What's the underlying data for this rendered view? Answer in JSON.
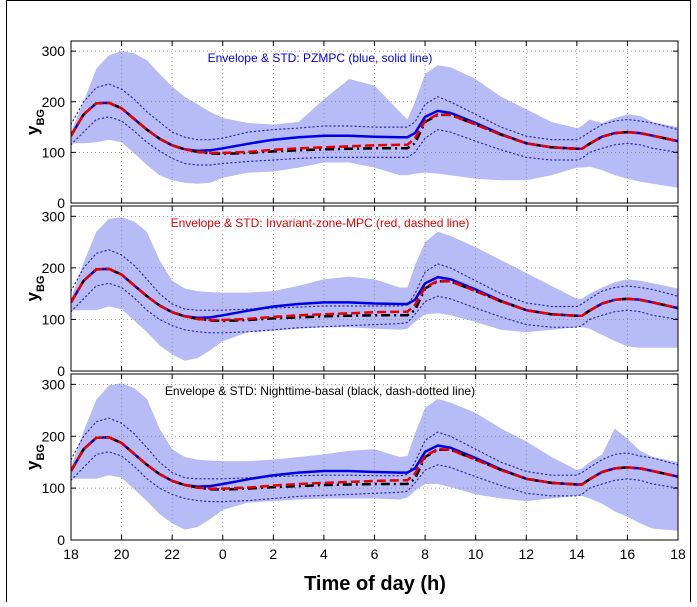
{
  "colors": {
    "envelope": "#b8bcf6",
    "pzmpc": "#0000e6",
    "izmpc": "#e60000",
    "nighttime": "#000000",
    "std": "#2a2aa8"
  },
  "chart_data": [
    {
      "type": "line",
      "annotation": "Envelope & STD: PZMPC (blue, solid line)",
      "annotation_color": "#0000e6",
      "ylabel": "y",
      "ylabel_sub": "BG",
      "xlabel": "",
      "ylim": [
        0,
        320
      ],
      "yticks": [
        0,
        100,
        200,
        300
      ],
      "xlim": [
        0,
        24
      ],
      "xticks": [
        0,
        2,
        4,
        6,
        8,
        10,
        12,
        14,
        16,
        18,
        20,
        22,
        24
      ],
      "xtick_labels": [
        "18",
        "20",
        "22",
        "0",
        "2",
        "4",
        "6",
        "8",
        "10",
        "12",
        "14",
        "16",
        "18"
      ],
      "grid": true,
      "x": [
        0,
        0.5,
        1,
        1.5,
        2,
        2.5,
        3,
        3.5,
        4,
        4.5,
        5,
        5.5,
        6,
        7,
        8,
        9,
        10,
        11,
        12,
        13,
        13.3,
        13.6,
        14,
        14.5,
        15,
        16,
        17,
        18,
        19,
        20,
        20.2,
        20.5,
        21,
        21.5,
        22,
        22.5,
        23,
        24
      ],
      "envelope_upper": [
        140,
        200,
        265,
        292,
        300,
        296,
        282,
        255,
        230,
        210,
        195,
        180,
        168,
        158,
        155,
        160,
        205,
        245,
        232,
        180,
        165,
        200,
        255,
        272,
        268,
        245,
        210,
        185,
        160,
        148,
        152,
        165,
        158,
        168,
        175,
        172,
        160,
        150
      ],
      "envelope_lower": [
        118,
        118,
        120,
        125,
        120,
        98,
        75,
        55,
        45,
        40,
        38,
        40,
        50,
        60,
        62,
        70,
        80,
        80,
        70,
        55,
        55,
        58,
        60,
        58,
        55,
        48,
        45,
        45,
        55,
        70,
        70,
        72,
        65,
        55,
        48,
        42,
        38,
        30
      ],
      "std_upper": [
        155,
        200,
        228,
        235,
        225,
        205,
        180,
        160,
        140,
        130,
        125,
        125,
        128,
        140,
        145,
        148,
        152,
        152,
        150,
        150,
        150,
        160,
        195,
        210,
        200,
        175,
        150,
        132,
        125,
        125,
        130,
        140,
        155,
        162,
        165,
        162,
        158,
        145
      ],
      "std_lower": [
        115,
        140,
        165,
        170,
        162,
        142,
        120,
        103,
        88,
        78,
        75,
        75,
        78,
        82,
        85,
        88,
        90,
        90,
        90,
        90,
        90,
        100,
        128,
        145,
        140,
        122,
        105,
        90,
        85,
        85,
        88,
        100,
        108,
        115,
        118,
        115,
        108,
        100
      ],
      "series": [
        {
          "name": "PZMPC",
          "style": "solid",
          "values": [
            133,
            175,
            197,
            198,
            187,
            166,
            145,
            127,
            114,
            106,
            103,
            104,
            108,
            117,
            125,
            130,
            133,
            133,
            131,
            130,
            130,
            138,
            170,
            182,
            178,
            158,
            136,
            118,
            110,
            107,
            107,
            117,
            131,
            138,
            140,
            138,
            133,
            122
          ]
        },
        {
          "name": "Invariant-zone-MPC",
          "style": "dashed",
          "values": [
            133,
            175,
            197,
            198,
            187,
            166,
            145,
            127,
            114,
            106,
            101,
            99,
            99,
            101,
            105,
            108,
            110,
            112,
            114,
            115,
            115,
            128,
            162,
            175,
            174,
            155,
            135,
            118,
            110,
            107,
            107,
            117,
            131,
            138,
            140,
            138,
            133,
            122
          ]
        },
        {
          "name": "Nighttime-basal",
          "style": "dashdot",
          "values": [
            133,
            175,
            197,
            198,
            187,
            166,
            145,
            127,
            114,
            106,
            101,
            98,
            97,
            99,
            102,
            104,
            106,
            107,
            108,
            108,
            108,
            118,
            160,
            174,
            174,
            155,
            135,
            118,
            110,
            107,
            107,
            117,
            131,
            138,
            140,
            138,
            133,
            122
          ]
        }
      ]
    },
    {
      "type": "line",
      "annotation": "Envelope & STD: Invariant-zone-MPC (red, dashed line)",
      "annotation_color": "#e60000",
      "ylabel": "y",
      "ylabel_sub": "BG",
      "xlabel": "",
      "ylim": [
        0,
        320
      ],
      "yticks": [
        0,
        100,
        200,
        300
      ],
      "xlim": [
        0,
        24
      ],
      "xticks": [
        0,
        2,
        4,
        6,
        8,
        10,
        12,
        14,
        16,
        18,
        20,
        22,
        24
      ],
      "xtick_labels": [
        "18",
        "20",
        "22",
        "0",
        "2",
        "4",
        "6",
        "8",
        "10",
        "12",
        "14",
        "16",
        "18"
      ],
      "grid": true,
      "x": [
        0,
        0.5,
        1,
        1.5,
        2,
        2.5,
        3,
        3.5,
        4,
        4.5,
        5,
        5.5,
        6,
        7,
        8,
        9,
        10,
        11,
        12,
        13,
        13.3,
        13.6,
        14,
        14.5,
        15,
        16,
        17,
        18,
        19,
        20,
        20.2,
        20.5,
        21,
        21.5,
        22,
        22.5,
        23,
        24
      ],
      "envelope_upper": [
        140,
        210,
        270,
        295,
        298,
        290,
        270,
        215,
        175,
        160,
        155,
        153,
        152,
        152,
        155,
        165,
        178,
        183,
        178,
        162,
        162,
        205,
        250,
        270,
        262,
        240,
        215,
        190,
        165,
        140,
        140,
        150,
        162,
        172,
        178,
        175,
        170,
        160
      ],
      "envelope_lower": [
        118,
        118,
        118,
        125,
        120,
        98,
        75,
        50,
        32,
        20,
        25,
        40,
        58,
        75,
        78,
        82,
        85,
        85,
        82,
        80,
        82,
        95,
        110,
        112,
        108,
        95,
        80,
        75,
        80,
        85,
        85,
        82,
        70,
        58,
        48,
        45,
        45,
        45
      ],
      "std_upper": [
        155,
        200,
        228,
        235,
        225,
        205,
        178,
        150,
        130,
        120,
        118,
        118,
        118,
        120,
        122,
        124,
        126,
        126,
        126,
        126,
        128,
        150,
        192,
        208,
        200,
        175,
        150,
        132,
        125,
        125,
        130,
        140,
        155,
        162,
        165,
        162,
        158,
        145
      ],
      "std_lower": [
        115,
        140,
        165,
        170,
        162,
        142,
        118,
        100,
        88,
        80,
        76,
        74,
        74,
        76,
        80,
        84,
        86,
        88,
        90,
        92,
        94,
        110,
        135,
        145,
        140,
        122,
        105,
        90,
        85,
        85,
        88,
        100,
        108,
        115,
        118,
        115,
        108,
        100
      ],
      "series": [
        {
          "name": "PZMPC",
          "style": "solid",
          "values": [
            133,
            175,
            197,
            198,
            187,
            166,
            145,
            127,
            114,
            106,
            103,
            104,
            108,
            117,
            125,
            130,
            133,
            133,
            131,
            130,
            130,
            138,
            170,
            182,
            178,
            158,
            136,
            118,
            110,
            107,
            107,
            117,
            131,
            138,
            140,
            138,
            133,
            122
          ]
        },
        {
          "name": "Invariant-zone-MPC",
          "style": "dashed",
          "values": [
            133,
            175,
            197,
            198,
            187,
            166,
            145,
            127,
            114,
            106,
            101,
            99,
            99,
            101,
            105,
            108,
            110,
            112,
            114,
            115,
            115,
            128,
            162,
            175,
            174,
            155,
            135,
            118,
            110,
            107,
            107,
            117,
            131,
            138,
            140,
            138,
            133,
            122
          ]
        },
        {
          "name": "Nighttime-basal",
          "style": "dashdot",
          "values": [
            133,
            175,
            197,
            198,
            187,
            166,
            145,
            127,
            114,
            106,
            101,
            98,
            97,
            99,
            102,
            104,
            106,
            107,
            108,
            108,
            108,
            118,
            160,
            174,
            174,
            155,
            135,
            118,
            110,
            107,
            107,
            117,
            131,
            138,
            140,
            138,
            133,
            122
          ]
        }
      ]
    },
    {
      "type": "line",
      "annotation": "Envelope & STD: Nighttime-basal (black, dash-dotted line)",
      "annotation_color": "#000000",
      "ylabel": "y",
      "ylabel_sub": "BG",
      "xlabel": "Time of day (h)",
      "ylim": [
        0,
        320
      ],
      "yticks": [
        0,
        100,
        200,
        300
      ],
      "xlim": [
        0,
        24
      ],
      "xticks": [
        0,
        2,
        4,
        6,
        8,
        10,
        12,
        14,
        16,
        18,
        20,
        22,
        24
      ],
      "xtick_labels": [
        "18",
        "20",
        "22",
        "0",
        "2",
        "4",
        "6",
        "8",
        "10",
        "12",
        "14",
        "16",
        "18"
      ],
      "grid": true,
      "x": [
        0,
        0.5,
        1,
        1.5,
        2,
        2.5,
        3,
        3.5,
        4,
        4.5,
        5,
        5.5,
        6,
        7,
        8,
        9,
        10,
        11,
        12,
        13,
        13.3,
        13.6,
        14,
        14.5,
        15,
        16,
        17,
        18,
        19,
        20,
        20.2,
        20.5,
        21,
        21.5,
        22,
        22.5,
        23,
        24
      ],
      "envelope_upper": [
        140,
        210,
        270,
        298,
        302,
        293,
        272,
        215,
        175,
        160,
        155,
        153,
        152,
        152,
        155,
        160,
        165,
        172,
        175,
        160,
        162,
        205,
        255,
        272,
        265,
        245,
        215,
        190,
        160,
        135,
        138,
        150,
        165,
        215,
        195,
        172,
        160,
        150
      ],
      "envelope_lower": [
        118,
        118,
        118,
        125,
        120,
        98,
        75,
        50,
        32,
        20,
        25,
        40,
        58,
        72,
        75,
        78,
        80,
        80,
        80,
        78,
        82,
        95,
        108,
        108,
        102,
        88,
        80,
        75,
        80,
        85,
        85,
        80,
        70,
        55,
        45,
        32,
        22,
        18
      ],
      "std_upper": [
        155,
        200,
        228,
        235,
        225,
        205,
        178,
        150,
        130,
        120,
        118,
        118,
        118,
        120,
        122,
        124,
        125,
        125,
        124,
        124,
        126,
        150,
        192,
        208,
        200,
        175,
        150,
        132,
        125,
        125,
        130,
        140,
        155,
        165,
        168,
        162,
        158,
        145
      ],
      "std_lower": [
        115,
        140,
        165,
        170,
        162,
        142,
        118,
        100,
        88,
        80,
        76,
        74,
        74,
        76,
        80,
        84,
        86,
        88,
        90,
        92,
        94,
        110,
        135,
        145,
        140,
        122,
        105,
        90,
        85,
        85,
        88,
        100,
        108,
        115,
        118,
        115,
        108,
        100
      ],
      "series": [
        {
          "name": "PZMPC",
          "style": "solid",
          "values": [
            133,
            175,
            197,
            198,
            187,
            166,
            145,
            127,
            114,
            106,
            103,
            104,
            108,
            117,
            125,
            130,
            133,
            133,
            131,
            130,
            130,
            138,
            170,
            182,
            178,
            158,
            136,
            118,
            110,
            107,
            107,
            117,
            131,
            138,
            140,
            138,
            133,
            122
          ]
        },
        {
          "name": "Invariant-zone-MPC",
          "style": "dashed",
          "values": [
            133,
            175,
            197,
            198,
            187,
            166,
            145,
            127,
            114,
            106,
            101,
            99,
            99,
            101,
            105,
            108,
            110,
            112,
            114,
            115,
            115,
            128,
            162,
            175,
            174,
            155,
            135,
            118,
            110,
            107,
            107,
            117,
            131,
            138,
            140,
            138,
            133,
            122
          ]
        },
        {
          "name": "Nighttime-basal",
          "style": "dashdot",
          "values": [
            133,
            175,
            197,
            198,
            187,
            166,
            145,
            127,
            114,
            106,
            101,
            98,
            97,
            99,
            102,
            104,
            106,
            107,
            108,
            108,
            108,
            118,
            160,
            174,
            174,
            155,
            135,
            118,
            110,
            107,
            107,
            117,
            131,
            138,
            140,
            138,
            133,
            122
          ]
        }
      ]
    }
  ]
}
